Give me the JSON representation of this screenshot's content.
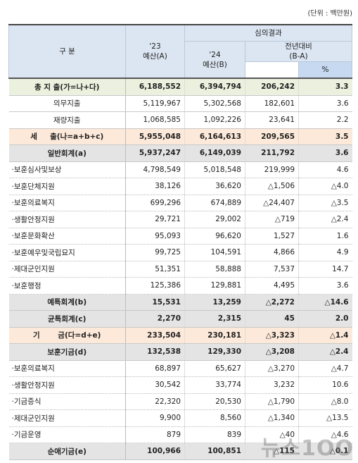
{
  "unit": "(단위 : 백만원)",
  "header": {
    "category": "구   분",
    "prev": "'23\n예산(A)",
    "result": "심의결과",
    "curr": "'24\n예산(B)",
    "diff": "전년대비\n(B-A)",
    "pct": "%"
  },
  "table": {
    "rows": [
      [
        "총 지 출(가=나+다)",
        "6,188,552",
        "6,394,794",
        "206,242",
        "3.3"
      ],
      [
        "의무지출",
        "5,119,967",
        "5,302,568",
        "182,601",
        "3.6"
      ],
      [
        "재량지출",
        "1,068,585",
        "1,092,226",
        "23,641",
        "2.2"
      ],
      [
        "세     출(나=a+b+c)",
        "5,955,048",
        "6,164,613",
        "209,565",
        "3.5"
      ],
      [
        "일반회계(a)",
        "5,937,247",
        "6,149,039",
        "211,792",
        "3.6"
      ],
      [
        "·보훈심사및보상",
        "4,798,549",
        "5,018,548",
        "219,999",
        "4.6"
      ],
      [
        "·보훈단체지원",
        "38,126",
        "36,620",
        "△1,506",
        "△4.0"
      ],
      [
        "·보훈의료복지",
        "699,296",
        "674,889",
        "△24,407",
        "△3.5"
      ],
      [
        "·생활안정지원",
        "29,721",
        "29,002",
        "△719",
        "△2.4"
      ],
      [
        "·보훈문화확산",
        "95,093",
        "96,620",
        "1,527",
        "1.6"
      ],
      [
        "·보훈예우및국립묘지",
        "99,725",
        "104,591",
        "4,866",
        "4.9"
      ],
      [
        "·제대군인지원",
        "51,351",
        "58,888",
        "7,537",
        "14.7"
      ],
      [
        "·보훈행정",
        "125,386",
        "129,881",
        "4,495",
        "3.6"
      ],
      [
        "예특회계(b)",
        "15,531",
        "13,259",
        "△2,272",
        "△14.6"
      ],
      [
        "균특회계(c)",
        "2,270",
        "2,315",
        "45",
        "2.0"
      ],
      [
        "기       금(다=d+e)",
        "233,504",
        "230,181",
        "△3,323",
        "△1.4"
      ],
      [
        "보훈기금(d)",
        "132,538",
        "129,330",
        "△3,208",
        "△2.4"
      ],
      [
        "·보훈의료복지",
        "68,897",
        "65,627",
        "△3,270",
        "△4.7"
      ],
      [
        "·생활안정지원",
        "30,542",
        "33,774",
        "3,232",
        "10.6"
      ],
      [
        "·기금증식",
        "22,320",
        "20,530",
        "△1,790",
        "△8.0"
      ],
      [
        "·제대군인지원",
        "9,900",
        "8,560",
        "△1,340",
        "△13.5"
      ],
      [
        "·기금운영",
        "879",
        "839",
        "△40",
        "△4.6"
      ],
      [
        "순애기금(e)",
        "100,966",
        "100,851",
        "△115",
        "△0.1"
      ]
    ]
  },
  "watermark": "뉴스1OO"
}
